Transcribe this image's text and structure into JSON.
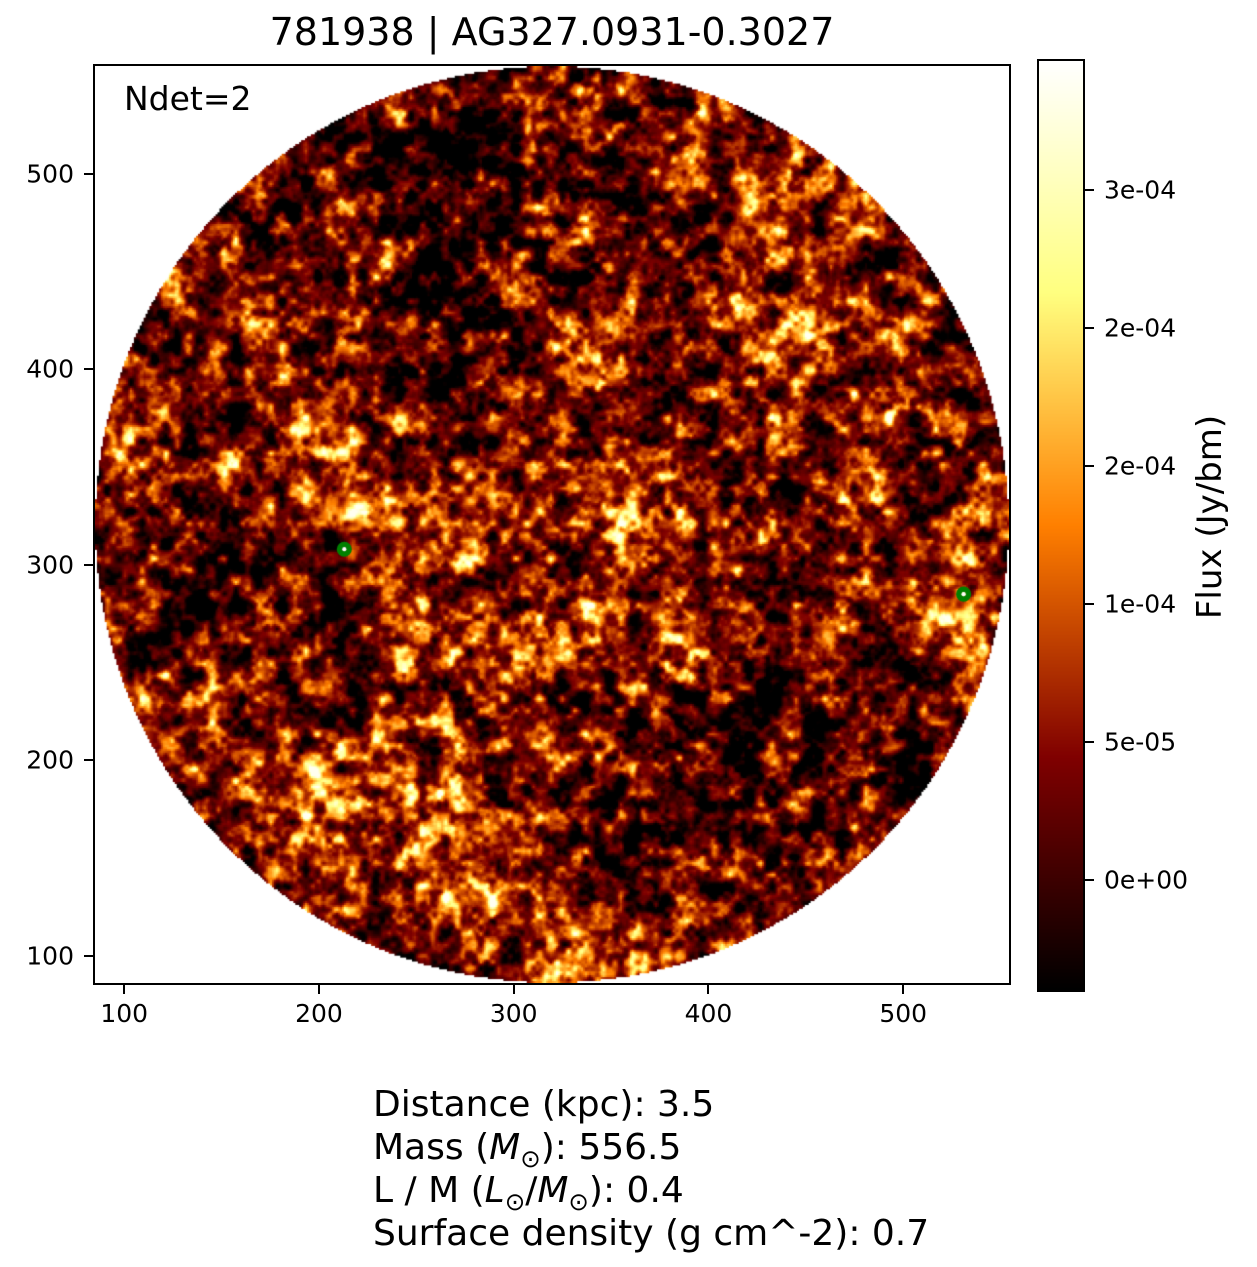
{
  "title": "781938 | AG327.0931-0.3027",
  "annotation": "Ndet=2",
  "chart_data": {
    "type": "heatmap",
    "title": "781938 | AG327.0931-0.3027",
    "annotation": "Ndet=2",
    "xlim": [
      85,
      554.3
    ],
    "ylim": [
      86,
      555.3
    ],
    "x_tick_values": [
      100,
      200,
      300,
      400,
      500
    ],
    "x_tick_labels": [
      "100",
      "200",
      "300",
      "400",
      "500"
    ],
    "y_tick_values": [
      100,
      200,
      300,
      400,
      500
    ],
    "y_tick_labels": [
      "100",
      "200",
      "300",
      "400",
      "500"
    ],
    "colormap": "afmhot",
    "disc": {
      "cx": 319.65,
      "cy": 320.65,
      "r": 234.5
    },
    "markers": [
      {
        "x": 213,
        "y": 308,
        "color": "#008000"
      },
      {
        "x": 531,
        "y": 285,
        "color": "#008000"
      }
    ],
    "colorbar": {
      "label": "Flux (Jy/bm)",
      "vmin": -4.06e-05,
      "vmax": 0.0002973,
      "tick_values": [
        0.00025,
        0.0002,
        0.00015,
        0.0001,
        5e-05,
        0
      ],
      "tick_labels": [
        "3e-04",
        "2e-04",
        "2e-04",
        "1e-04",
        "5e-05",
        "0e+00"
      ]
    }
  },
  "info_lines": [
    {
      "segments": [
        {
          "text": "Distance (kpc): 3.5",
          "style": "n"
        }
      ]
    },
    {
      "segments": [
        {
          "text": "Mass (",
          "style": "n"
        },
        {
          "text": "M",
          "style": "i"
        },
        {
          "text": "⊙",
          "style": "s"
        },
        {
          "text": "): 556.5",
          "style": "n"
        }
      ]
    },
    {
      "segments": [
        {
          "text": "L / M (",
          "style": "n"
        },
        {
          "text": "L",
          "style": "i"
        },
        {
          "text": "⊙",
          "style": "s"
        },
        {
          "text": "/",
          "style": "n"
        },
        {
          "text": "M",
          "style": "i"
        },
        {
          "text": "⊙",
          "style": "s"
        },
        {
          "text": "): 0.4",
          "style": "n"
        }
      ]
    },
    {
      "segments": [
        {
          "text": "Surface density (g cm^-2): 0.7",
          "style": "n"
        }
      ]
    }
  ]
}
